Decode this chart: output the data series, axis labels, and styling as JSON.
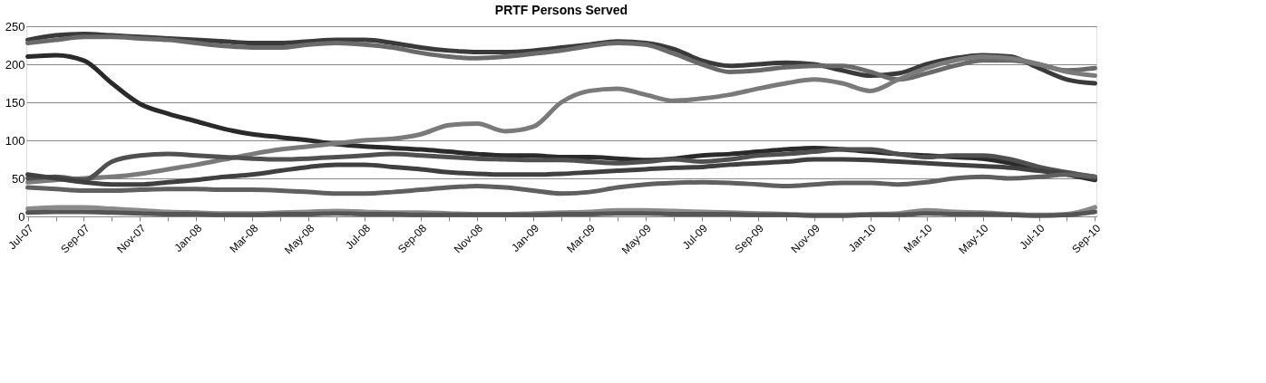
{
  "chart_data": {
    "type": "line",
    "title": "PRTF Persons Served",
    "categories": [
      "Jul-07",
      null,
      "Sep-07",
      null,
      "Nov-07",
      null,
      "Jan-08",
      null,
      "Mar-08",
      null,
      "May-08",
      null,
      "Jul-08",
      null,
      "Sep-08",
      null,
      "Nov-08",
      null,
      "Jan-09",
      null,
      "Mar-09",
      null,
      "May-09",
      null,
      "Jul-09",
      null,
      "Sep-09",
      null,
      "Nov-09",
      null,
      "Jan-10",
      null,
      "Mar-10",
      null,
      "May-10",
      null,
      "Jul-10",
      null,
      "Sep-10"
    ],
    "series": [
      {
        "color": "#3a3a3a",
        "values": [
          232,
          238,
          240,
          238,
          236,
          234,
          232,
          230,
          228,
          228,
          230,
          232,
          232,
          228,
          222,
          218,
          216,
          216,
          218,
          222,
          226,
          230,
          228,
          220,
          205,
          198,
          200,
          202,
          200,
          192,
          185,
          188,
          200,
          208,
          212,
          210,
          195,
          180,
          175
        ]
      },
      {
        "color": "#6a6a6a",
        "values": [
          228,
          232,
          236,
          236,
          234,
          232,
          228,
          224,
          222,
          222,
          226,
          228,
          226,
          222,
          215,
          210,
          208,
          210,
          214,
          218,
          224,
          228,
          226,
          214,
          200,
          190,
          192,
          196,
          198,
          198,
          190,
          180,
          188,
          198,
          205,
          205,
          200,
          192,
          195
        ]
      },
      {
        "color": "#2a2a2a",
        "values": [
          210,
          212,
          205,
          175,
          148,
          135,
          125,
          115,
          108,
          104,
          100,
          95,
          92,
          90,
          88,
          85,
          82,
          80,
          80,
          78,
          78,
          76,
          74,
          76,
          80,
          82,
          85,
          88,
          90,
          88,
          85,
          82,
          80,
          78,
          76,
          70,
          62,
          55,
          48
        ]
      },
      {
        "color": "#7a7a7a",
        "values": [
          45,
          48,
          50,
          52,
          56,
          62,
          68,
          75,
          82,
          88,
          92,
          96,
          100,
          102,
          108,
          120,
          122,
          112,
          118,
          150,
          165,
          168,
          160,
          152,
          155,
          160,
          168,
          175,
          180,
          175,
          165,
          180,
          195,
          205,
          210,
          208,
          200,
          190,
          185
        ]
      },
      {
        "color": "#505050",
        "values": [
          50,
          52,
          48,
          72,
          80,
          82,
          80,
          78,
          76,
          75,
          76,
          78,
          80,
          82,
          80,
          78,
          76,
          75,
          74,
          74,
          72,
          70,
          72,
          75,
          72,
          75,
          80,
          82,
          85,
          88,
          88,
          82,
          78,
          80,
          80,
          75,
          65,
          58,
          52
        ]
      },
      {
        "color": "#404040",
        "values": [
          55,
          50,
          45,
          42,
          42,
          45,
          48,
          52,
          55,
          60,
          65,
          68,
          68,
          65,
          62,
          58,
          56,
          55,
          55,
          56,
          58,
          60,
          62,
          64,
          65,
          68,
          70,
          72,
          75,
          75,
          74,
          72,
          70,
          68,
          66,
          64,
          60,
          56,
          50
        ]
      },
      {
        "color": "#606060",
        "values": [
          38,
          36,
          34,
          34,
          35,
          36,
          36,
          35,
          35,
          34,
          32,
          30,
          30,
          32,
          35,
          38,
          40,
          38,
          34,
          30,
          32,
          38,
          42,
          44,
          45,
          44,
          42,
          40,
          42,
          44,
          44,
          42,
          45,
          50,
          52,
          50,
          52,
          55,
          52
        ]
      },
      {
        "color": "#8a8a8a",
        "values": [
          10,
          12,
          12,
          10,
          8,
          6,
          5,
          4,
          4,
          5,
          6,
          7,
          6,
          5,
          5,
          4,
          3,
          3,
          4,
          5,
          6,
          8,
          8,
          7,
          6,
          5,
          4,
          3,
          2,
          2,
          3,
          4,
          8,
          6,
          5,
          3,
          2,
          3,
          12
        ]
      },
      {
        "color": "#555555",
        "values": [
          5,
          6,
          6,
          5,
          4,
          3,
          3,
          2,
          2,
          3,
          3,
          4,
          3,
          3,
          2,
          2,
          2,
          2,
          2,
          3,
          3,
          4,
          4,
          3,
          3,
          3,
          2,
          2,
          1,
          1,
          2,
          2,
          4,
          3,
          3,
          2,
          1,
          2,
          6
        ]
      }
    ],
    "ylim": [
      0,
      250
    ],
    "yticks": [
      0,
      50,
      100,
      150,
      200,
      250
    ],
    "grid": "y"
  }
}
